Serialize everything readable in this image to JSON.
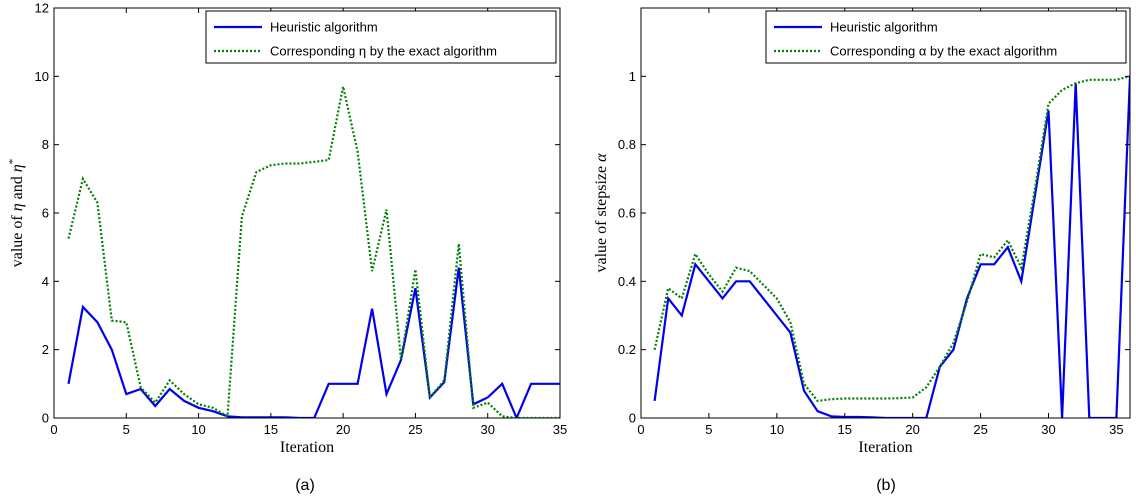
{
  "colors": {
    "heuristic": "#0000ee",
    "exact": "#008000",
    "axis": "#000000"
  },
  "panels": [
    {
      "label": "(a)"
    },
    {
      "label": "(b)"
    }
  ],
  "chart_data": [
    {
      "type": "line",
      "xlabel": "Iteration",
      "ylabel_parts": {
        "prefix": "value of ",
        "sym1": "η",
        "mid": " and ",
        "sym2": "η",
        "sup": "*"
      },
      "xlim": [
        0,
        35
      ],
      "ylim": [
        0,
        12
      ],
      "xticks": [
        0,
        5,
        10,
        15,
        20,
        25,
        30,
        35
      ],
      "yticks": [
        0,
        2,
        4,
        6,
        8,
        10,
        12
      ],
      "legend": "top-right",
      "series": [
        {
          "name": "Heuristic algorithm",
          "style": "solid",
          "x": [
            1,
            2,
            3,
            4,
            5,
            6,
            7,
            8,
            9,
            10,
            11,
            12,
            13,
            14,
            15,
            16,
            17,
            18,
            19,
            20,
            21,
            22,
            23,
            24,
            25,
            26,
            27,
            28,
            29,
            30,
            31,
            32,
            33,
            34,
            35
          ],
          "y": [
            1.0,
            3.25,
            2.8,
            2.0,
            0.7,
            0.85,
            0.35,
            0.85,
            0.5,
            0.3,
            0.2,
            0.05,
            0.02,
            0.02,
            0.02,
            0.02,
            0.0,
            0.0,
            1.0,
            1.0,
            1.0,
            3.2,
            0.7,
            1.7,
            3.8,
            0.6,
            1.05,
            4.4,
            0.4,
            0.6,
            1.0,
            0.0,
            1.0,
            1.0,
            1.0
          ]
        },
        {
          "name": "Corresponding η by the exact algorithm",
          "style": "dotted",
          "x": [
            1,
            2,
            3,
            4,
            5,
            6,
            7,
            8,
            9,
            10,
            11,
            12,
            13,
            14,
            15,
            16,
            17,
            18,
            19,
            20,
            21,
            22,
            23,
            24,
            25,
            26,
            27,
            28,
            29,
            30,
            31,
            32,
            33,
            34,
            35
          ],
          "y": [
            5.25,
            7.0,
            6.3,
            2.85,
            2.8,
            0.9,
            0.45,
            1.1,
            0.7,
            0.4,
            0.3,
            0.05,
            5.9,
            7.2,
            7.4,
            7.45,
            7.45,
            7.5,
            7.55,
            9.7,
            7.8,
            4.3,
            6.1,
            1.7,
            4.35,
            0.6,
            1.1,
            5.1,
            0.3,
            0.45,
            0.05,
            0.0,
            0.0,
            0.0,
            0.0
          ]
        }
      ]
    },
    {
      "type": "line",
      "xlabel": "Iteration",
      "ylabel_parts": {
        "prefix": "value of stepsize ",
        "sym1": "α"
      },
      "xlim": [
        0,
        36
      ],
      "ylim": [
        0,
        1.2
      ],
      "xticks": [
        0,
        5,
        10,
        15,
        20,
        25,
        30,
        35
      ],
      "yticks": [
        0,
        0.2,
        0.4,
        0.6,
        0.8,
        1
      ],
      "legend": "top-right",
      "series": [
        {
          "name": "Heuristic algorithm",
          "style": "solid",
          "x": [
            1,
            2,
            3,
            4,
            5,
            6,
            7,
            8,
            9,
            10,
            11,
            12,
            13,
            14,
            15,
            16,
            17,
            18,
            19,
            20,
            21,
            22,
            23,
            24,
            25,
            26,
            27,
            28,
            29,
            30,
            31,
            32,
            33,
            34,
            35,
            36
          ],
          "y": [
            0.05,
            0.35,
            0.3,
            0.45,
            0.4,
            0.35,
            0.4,
            0.4,
            0.35,
            0.3,
            0.25,
            0.08,
            0.02,
            0.005,
            0.003,
            0.003,
            0.002,
            0.0,
            0.0,
            0.0,
            0.0,
            0.15,
            0.2,
            0.35,
            0.45,
            0.45,
            0.5,
            0.4,
            0.65,
            0.9,
            0.0,
            0.98,
            0.0,
            0.0,
            0.0,
            1.0
          ]
        },
        {
          "name": "Corresponding α by the exact algorithm",
          "style": "dotted",
          "x": [
            1,
            2,
            3,
            4,
            5,
            6,
            7,
            8,
            9,
            10,
            11,
            12,
            13,
            14,
            15,
            16,
            17,
            18,
            19,
            20,
            21,
            22,
            23,
            24,
            25,
            26,
            27,
            28,
            29,
            30,
            31,
            32,
            33,
            34,
            35,
            36
          ],
          "y": [
            0.2,
            0.38,
            0.35,
            0.48,
            0.42,
            0.37,
            0.44,
            0.43,
            0.39,
            0.35,
            0.28,
            0.1,
            0.05,
            0.055,
            0.057,
            0.057,
            0.057,
            0.057,
            0.058,
            0.06,
            0.09,
            0.15,
            0.22,
            0.34,
            0.48,
            0.47,
            0.52,
            0.44,
            0.67,
            0.92,
            0.96,
            0.98,
            0.99,
            0.99,
            0.99,
            1.0
          ]
        }
      ]
    }
  ]
}
